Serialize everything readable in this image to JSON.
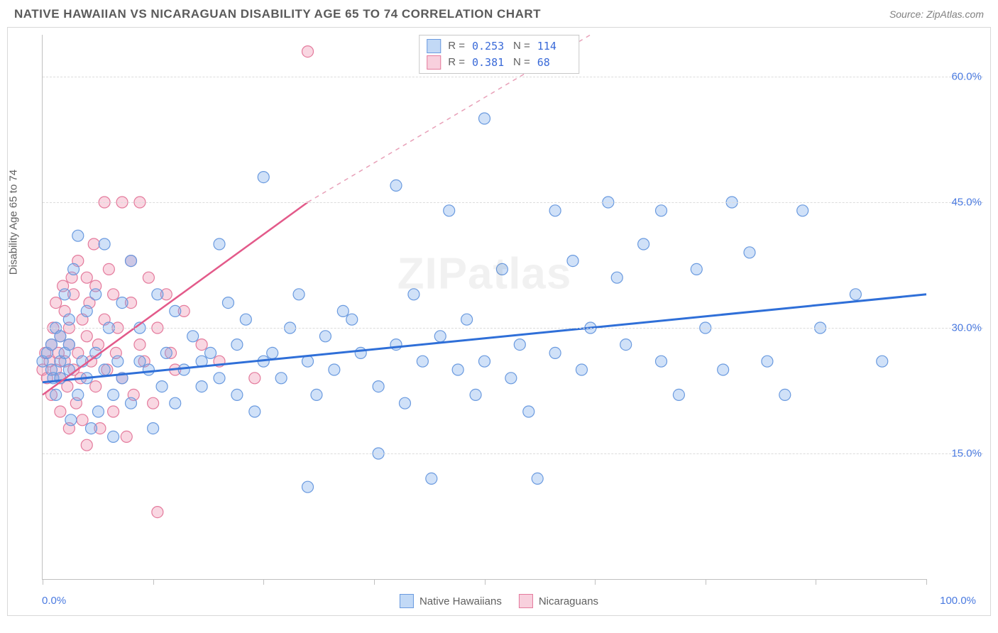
{
  "title": "NATIVE HAWAIIAN VS NICARAGUAN DISABILITY AGE 65 TO 74 CORRELATION CHART",
  "source": "Source: ZipAtlas.com",
  "watermark": "ZIPatlas",
  "ylabel": "Disability Age 65 to 74",
  "chart": {
    "type": "scatter",
    "xlim": [
      0,
      100
    ],
    "ylim": [
      0,
      65
    ],
    "xtick_positions": [
      0,
      12.5,
      25,
      37.5,
      50,
      62.5,
      75,
      87.5,
      100
    ],
    "ytick_labels": [
      {
        "value": 15,
        "label": "15.0%"
      },
      {
        "value": 30,
        "label": "30.0%"
      },
      {
        "value": 45,
        "label": "45.0%"
      },
      {
        "value": 60,
        "label": "60.0%"
      }
    ],
    "xaxis_min_label": "0.0%",
    "xaxis_max_label": "100.0%",
    "grid_color": "#dcdcdc",
    "axis_color": "#c0c0c0",
    "background": "#ffffff",
    "marker_radius": 8,
    "marker_stroke_width": 1.2,
    "series": [
      {
        "name": "Native Hawaiians",
        "fill": "rgba(120,170,235,0.35)",
        "stroke": "#6a9adf",
        "regression": {
          "x1": 0,
          "y1": 23.5,
          "x2": 100,
          "y2": 34,
          "color": "#2f6fd8",
          "width": 3,
          "dash": "none"
        },
        "stats": {
          "R": "0.253",
          "N": "114"
        },
        "points": [
          [
            0,
            26
          ],
          [
            0.5,
            27
          ],
          [
            1,
            25
          ],
          [
            1,
            28
          ],
          [
            1.2,
            24
          ],
          [
            1.5,
            30
          ],
          [
            1.5,
            22
          ],
          [
            2,
            29
          ],
          [
            2,
            26
          ],
          [
            2,
            24
          ],
          [
            2.5,
            34
          ],
          [
            2.5,
            27
          ],
          [
            3,
            31
          ],
          [
            3,
            25
          ],
          [
            3,
            28
          ],
          [
            3.2,
            19
          ],
          [
            3.5,
            37
          ],
          [
            4,
            41
          ],
          [
            4,
            22
          ],
          [
            4.5,
            26
          ],
          [
            5,
            32
          ],
          [
            5,
            24
          ],
          [
            5.5,
            18
          ],
          [
            6,
            34
          ],
          [
            6,
            27
          ],
          [
            6.3,
            20
          ],
          [
            7,
            40
          ],
          [
            7,
            25
          ],
          [
            7.5,
            30
          ],
          [
            8,
            22
          ],
          [
            8,
            17
          ],
          [
            8.5,
            26
          ],
          [
            9,
            33
          ],
          [
            9,
            24
          ],
          [
            10,
            38
          ],
          [
            10,
            21
          ],
          [
            11,
            30
          ],
          [
            11,
            26
          ],
          [
            12,
            25
          ],
          [
            12.5,
            18
          ],
          [
            13,
            34
          ],
          [
            13.5,
            23
          ],
          [
            14,
            27
          ],
          [
            15,
            32
          ],
          [
            15,
            21
          ],
          [
            16,
            25
          ],
          [
            17,
            29
          ],
          [
            18,
            23
          ],
          [
            18,
            26
          ],
          [
            19,
            27
          ],
          [
            20,
            40
          ],
          [
            20,
            24
          ],
          [
            21,
            33
          ],
          [
            22,
            22
          ],
          [
            22,
            28
          ],
          [
            23,
            31
          ],
          [
            24,
            20
          ],
          [
            25,
            26
          ],
          [
            25,
            48
          ],
          [
            26,
            27
          ],
          [
            27,
            24
          ],
          [
            28,
            30
          ],
          [
            29,
            34
          ],
          [
            30,
            26
          ],
          [
            30,
            11
          ],
          [
            31,
            22
          ],
          [
            32,
            29
          ],
          [
            33,
            25
          ],
          [
            34,
            32
          ],
          [
            35,
            31
          ],
          [
            36,
            27
          ],
          [
            38,
            23
          ],
          [
            38,
            15
          ],
          [
            40,
            47
          ],
          [
            40,
            28
          ],
          [
            41,
            21
          ],
          [
            42,
            34
          ],
          [
            43,
            26
          ],
          [
            44,
            12
          ],
          [
            45,
            29
          ],
          [
            46,
            44
          ],
          [
            47,
            25
          ],
          [
            48,
            31
          ],
          [
            49,
            22
          ],
          [
            50,
            55
          ],
          [
            50,
            26
          ],
          [
            52,
            37
          ],
          [
            53,
            24
          ],
          [
            54,
            28
          ],
          [
            55,
            20
          ],
          [
            56,
            12
          ],
          [
            58,
            44
          ],
          [
            58,
            27
          ],
          [
            60,
            38
          ],
          [
            61,
            25
          ],
          [
            62,
            30
          ],
          [
            64,
            45
          ],
          [
            65,
            36
          ],
          [
            66,
            28
          ],
          [
            68,
            40
          ],
          [
            70,
            26
          ],
          [
            70,
            44
          ],
          [
            72,
            22
          ],
          [
            74,
            37
          ],
          [
            75,
            30
          ],
          [
            77,
            25
          ],
          [
            78,
            45
          ],
          [
            80,
            39
          ],
          [
            82,
            26
          ],
          [
            84,
            22
          ],
          [
            86,
            44
          ],
          [
            88,
            30
          ],
          [
            92,
            34
          ],
          [
            95,
            26
          ]
        ]
      },
      {
        "name": "Nicaraguans",
        "fill": "rgba(240,150,180,0.38)",
        "stroke": "#e47a9c",
        "regression_solid": {
          "x1": 0,
          "y1": 22,
          "x2": 30,
          "y2": 45,
          "color": "#e35a8a",
          "width": 2.5
        },
        "regression_dashed": {
          "x1": 30,
          "y1": 45,
          "x2": 62,
          "y2": 65,
          "color": "#e8a0b8",
          "width": 1.5
        },
        "stats": {
          "R": "0.381",
          "N": "68"
        },
        "points": [
          [
            0,
            25
          ],
          [
            0.3,
            27
          ],
          [
            0.5,
            24
          ],
          [
            0.8,
            26
          ],
          [
            1,
            28
          ],
          [
            1,
            22
          ],
          [
            1.2,
            30
          ],
          [
            1.5,
            25
          ],
          [
            1.5,
            33
          ],
          [
            1.8,
            27
          ],
          [
            2,
            24
          ],
          [
            2,
            29
          ],
          [
            2,
            20
          ],
          [
            2.3,
            35
          ],
          [
            2.5,
            26
          ],
          [
            2.5,
            32
          ],
          [
            2.8,
            23
          ],
          [
            3,
            28
          ],
          [
            3,
            30
          ],
          [
            3,
            18
          ],
          [
            3.3,
            36
          ],
          [
            3.5,
            25
          ],
          [
            3.5,
            34
          ],
          [
            3.8,
            21
          ],
          [
            4,
            27
          ],
          [
            4,
            38
          ],
          [
            4.3,
            24
          ],
          [
            4.5,
            31
          ],
          [
            4.5,
            19
          ],
          [
            5,
            29
          ],
          [
            5,
            36
          ],
          [
            5,
            16
          ],
          [
            5.3,
            33
          ],
          [
            5.5,
            26
          ],
          [
            5.8,
            40
          ],
          [
            6,
            23
          ],
          [
            6,
            35
          ],
          [
            6.3,
            28
          ],
          [
            6.5,
            18
          ],
          [
            7,
            31
          ],
          [
            7,
            45
          ],
          [
            7.3,
            25
          ],
          [
            7.5,
            37
          ],
          [
            8,
            20
          ],
          [
            8,
            34
          ],
          [
            8.3,
            27
          ],
          [
            8.5,
            30
          ],
          [
            9,
            24
          ],
          [
            9,
            45
          ],
          [
            9.5,
            17
          ],
          [
            10,
            33
          ],
          [
            10,
            38
          ],
          [
            10.3,
            22
          ],
          [
            11,
            28
          ],
          [
            11,
            45
          ],
          [
            11.5,
            26
          ],
          [
            12,
            36
          ],
          [
            12.5,
            21
          ],
          [
            13,
            30
          ],
          [
            13,
            8
          ],
          [
            14,
            34
          ],
          [
            14.5,
            27
          ],
          [
            15,
            25
          ],
          [
            16,
            32
          ],
          [
            18,
            28
          ],
          [
            20,
            26
          ],
          [
            24,
            24
          ],
          [
            30,
            63
          ]
        ]
      }
    ]
  },
  "legend": {
    "series1": {
      "label": "Native Hawaiians",
      "fill": "rgba(120,170,235,0.45)",
      "stroke": "#6a9adf"
    },
    "series2": {
      "label": "Nicaraguans",
      "fill": "rgba(240,150,180,0.45)",
      "stroke": "#e47a9c"
    }
  },
  "stats_labels": {
    "R": "R =",
    "N": "N ="
  }
}
